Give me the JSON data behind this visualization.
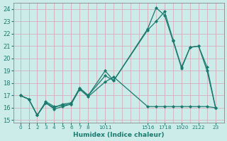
{
  "xlabel": "Humidex (Indice chaleur)",
  "background_color": "#ccecea",
  "grid_color": "#d4b0bc",
  "line_color": "#1a7a6e",
  "xlim": [
    -0.8,
    24.0
  ],
  "ylim": [
    14.8,
    24.5
  ],
  "yticks": [
    15,
    16,
    17,
    18,
    19,
    20,
    21,
    22,
    23,
    24
  ],
  "hours": [
    0,
    1,
    2,
    3,
    4,
    5,
    6,
    7,
    8,
    10,
    11,
    15,
    16,
    17,
    18,
    19,
    20,
    21,
    22,
    23
  ],
  "line1_y": [
    17.0,
    16.7,
    15.4,
    16.4,
    15.9,
    16.1,
    16.3,
    17.5,
    16.9,
    18.1,
    18.5,
    16.1,
    16.1,
    16.1,
    16.1,
    16.1,
    16.1,
    16.1,
    16.1,
    16.0
  ],
  "line2_y": [
    17.0,
    16.7,
    15.4,
    16.4,
    16.0,
    16.3,
    16.4,
    17.6,
    17.0,
    19.0,
    18.2,
    22.4,
    24.1,
    23.5,
    21.4,
    19.2,
    20.9,
    21.0,
    19.0,
    16.0
  ],
  "line3_y": [
    17.0,
    16.7,
    15.4,
    16.5,
    16.1,
    16.2,
    16.3,
    17.6,
    17.0,
    18.6,
    18.2,
    22.3,
    23.0,
    23.8,
    21.5,
    19.3,
    20.9,
    21.0,
    19.3,
    16.0
  ],
  "xtick_positions": [
    0,
    1,
    2,
    3,
    4,
    5,
    6,
    7,
    8,
    10,
    15,
    17,
    19,
    21,
    23
  ],
  "xtick_labels": [
    "0",
    "1",
    "2",
    "3",
    "4",
    "5",
    "6",
    "7",
    "8",
    "1011",
    "1516",
    "1718",
    "1920",
    "2122",
    "23"
  ]
}
